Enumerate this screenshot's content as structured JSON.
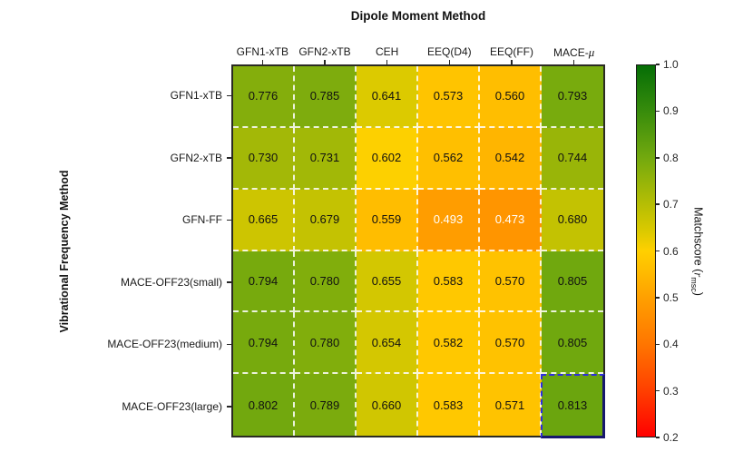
{
  "chart_data": {
    "type": "heatmap",
    "title": "Dipole Moment Method",
    "xlabel": "Dipole Moment Method",
    "ylabel": "Vibrational Frequency Method",
    "columns": [
      "GFN1-xTB",
      "GFN2-xTB",
      "CEH",
      "EEQ(D4)",
      "EEQ(FF)",
      "MACE-μ"
    ],
    "rows": [
      "GFN1-xTB",
      "GFN2-xTB",
      "GFN-FF",
      "MACE-OFF23(small)",
      "MACE-OFF23(medium)",
      "MACE-OFF23(large)"
    ],
    "values": [
      [
        "0.776",
        "0.785",
        "0.641",
        "0.573",
        "0.560",
        "0.793"
      ],
      [
        "0.730",
        "0.731",
        "0.602",
        "0.562",
        "0.542",
        "0.744"
      ],
      [
        "0.665",
        "0.679",
        "0.559",
        "0.493",
        "0.473",
        "0.680"
      ],
      [
        "0.794",
        "0.780",
        "0.655",
        "0.583",
        "0.570",
        "0.805"
      ],
      [
        "0.794",
        "0.780",
        "0.654",
        "0.582",
        "0.570",
        "0.805"
      ],
      [
        "0.802",
        "0.789",
        "0.660",
        "0.583",
        "0.571",
        "0.813"
      ]
    ],
    "value_range": [
      0.2,
      1.0
    ],
    "white_text_below": 0.5,
    "highlight": {
      "row": "MACE-OFF23(large)",
      "column": "MACE-μ",
      "value": "0.813",
      "border_color": "#2d2de0"
    },
    "colormap": [
      {
        "v": 0.2,
        "color": "#ff0000"
      },
      {
        "v": 0.3,
        "color": "#ff4000"
      },
      {
        "v": 0.4,
        "color": "#ff7600"
      },
      {
        "v": 0.5,
        "color": "#ffa000"
      },
      {
        "v": 0.55,
        "color": "#ffb900"
      },
      {
        "v": 0.6,
        "color": "#ffd000"
      },
      {
        "v": 0.64,
        "color": "#ddca00"
      },
      {
        "v": 0.68,
        "color": "#c3c202"
      },
      {
        "v": 0.72,
        "color": "#a9ba06"
      },
      {
        "v": 0.76,
        "color": "#8fb20a"
      },
      {
        "v": 0.8,
        "color": "#73a90e"
      },
      {
        "v": 0.9,
        "color": "#388c0c"
      },
      {
        "v": 1.0,
        "color": "#056e06"
      }
    ],
    "colorbar": {
      "label_prefix": "Matchscore (",
      "label_var": "r",
      "label_sub": "msc",
      "label_suffix": ")",
      "ticks": [
        "1.0",
        "0.9",
        "0.8",
        "0.7",
        "0.6",
        "0.5",
        "0.4",
        "0.3",
        "0.2"
      ]
    }
  }
}
